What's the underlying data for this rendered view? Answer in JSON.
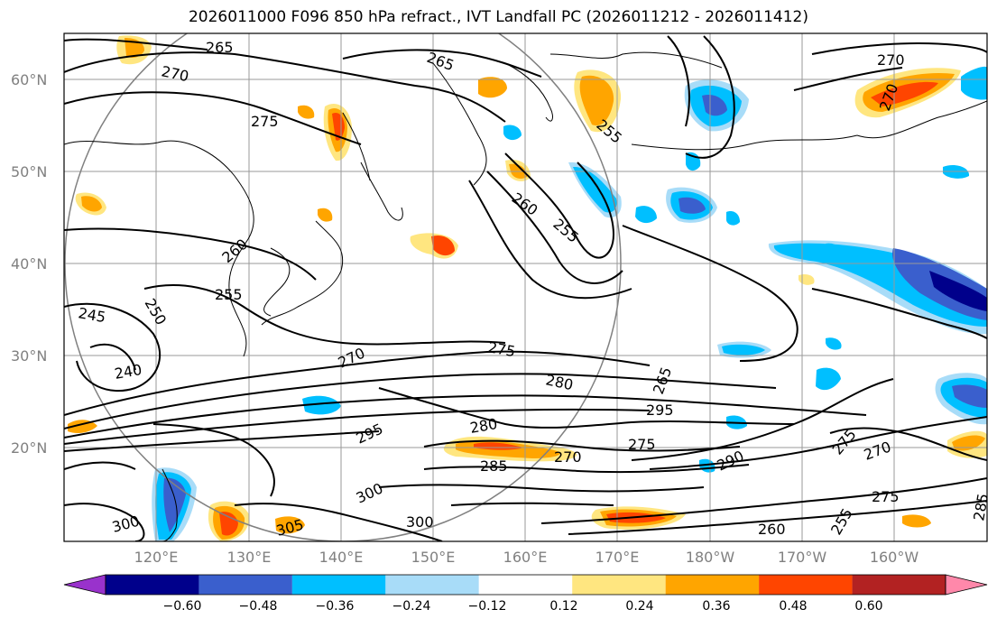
{
  "title": "2026011000 F096 850 hPa refract., IVT Landfall PC (2026011212 - 2026011412)",
  "map": {
    "longitude_labels": [
      "120°E",
      "130°E",
      "140°E",
      "150°E",
      "160°E",
      "170°E",
      "180°W",
      "170°W",
      "160°W"
    ],
    "latitude_labels": [
      "60°N",
      "50°N",
      "40°N",
      "30°N",
      "20°N"
    ],
    "contour_labels": [
      "265",
      "270",
      "275",
      "265",
      "270",
      "255",
      "260",
      "255",
      "260",
      "255",
      "250",
      "245",
      "240",
      "275",
      "270",
      "280",
      "265",
      "295",
      "295",
      "280",
      "275",
      "270",
      "285",
      "290",
      "275",
      "270",
      "300",
      "300",
      "305",
      "300",
      "275",
      "285",
      "260",
      "255",
      "270"
    ]
  },
  "colorbar": {
    "tick_labels": [
      "−0.60",
      "−0.48",
      "−0.36",
      "−0.24",
      "−0.12",
      "0.12",
      "0.24",
      "0.36",
      "0.48",
      "0.60"
    ],
    "colors": [
      "#9932cc",
      "#00008b",
      "#3a5fcd",
      "#00bfff",
      "#a8dcf8",
      "#ffffff",
      "#ffe680",
      "#ffa500",
      "#ff4500",
      "#b22222",
      "#ff88aa"
    ]
  },
  "palette": {
    "contour": "#000000",
    "grid": "#999999",
    "neg_light": "#a8dcf8",
    "neg_mid": "#00bfff",
    "neg_strong": "#3a5fcd",
    "pos_light": "#ffe680",
    "pos_mid": "#ffa500",
    "pos_strong": "#ff4500"
  }
}
